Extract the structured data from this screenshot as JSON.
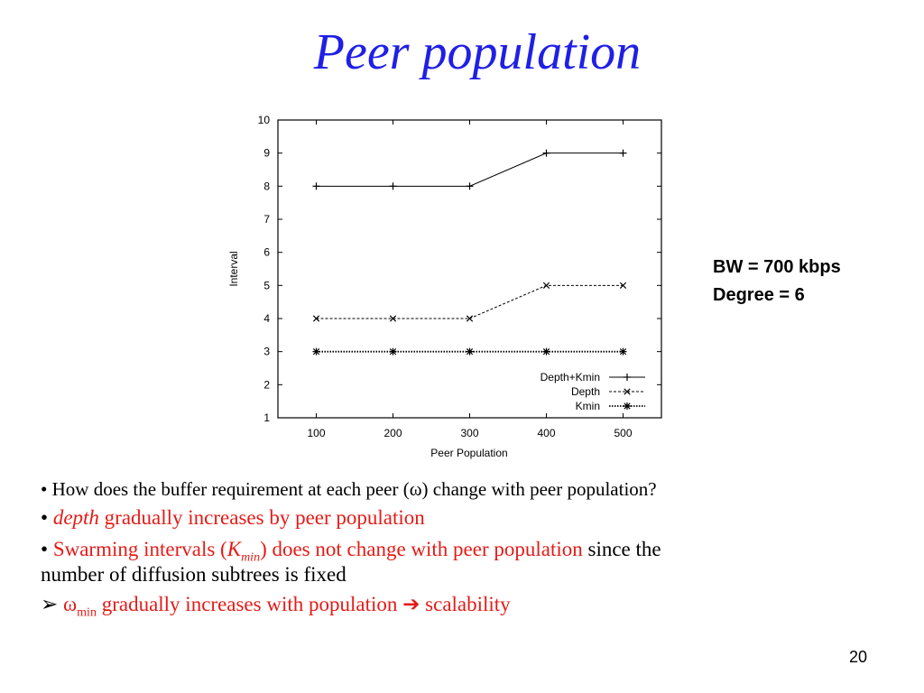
{
  "slide": {
    "title": "Peer population",
    "annotation_line1": "BW = 700 kbps",
    "annotation_line2": "Degree = 6",
    "bullet1": {
      "marker": "•",
      "text": "How does the buffer requirement at each peer (ω) change with peer population?"
    },
    "bullet2": {
      "marker": "•",
      "italic": "depth",
      "rest": "gradually increases by peer population"
    },
    "bullet3": {
      "marker": "•",
      "pre": "Swarming intervals (",
      "k": "K",
      "k_sub": "min",
      "post": ") does not change with peer population",
      "black_tail": "since the",
      "line2": "number of diffusion subtrees is fixed"
    },
    "bullet4": {
      "marker": "➢",
      "omega": "ω",
      "omega_sub": "min",
      "text": "gradually increases with population",
      "arrow": "➔",
      "tail": "scalability"
    },
    "page_number": "20",
    "colors": {
      "title": "#1f1fe6",
      "highlight": "#e41b17"
    }
  },
  "chart_data": {
    "type": "line",
    "xlabel": "Peer Population",
    "ylabel": "Interval",
    "x": [
      100,
      200,
      300,
      400,
      500
    ],
    "xlim": [
      50,
      550
    ],
    "ylim": [
      1,
      10
    ],
    "x_ticks": [
      "100",
      "200",
      "300",
      "400",
      "500"
    ],
    "y_ticks": [
      "1",
      "2",
      "3",
      "4",
      "5",
      "6",
      "7",
      "8",
      "9",
      "10"
    ],
    "grid": false,
    "legend_position": "bottom-right",
    "series": [
      {
        "name": "Depth+Kmin",
        "values": [
          8,
          8,
          8,
          9,
          9
        ],
        "marker": "plus",
        "dash": "solid"
      },
      {
        "name": "Depth",
        "values": [
          4,
          4,
          4,
          5,
          5
        ],
        "marker": "x",
        "dash": "dashed"
      },
      {
        "name": "Kmin",
        "values": [
          3,
          3,
          3,
          3,
          3
        ],
        "marker": "star",
        "dash": "dotted"
      }
    ]
  }
}
